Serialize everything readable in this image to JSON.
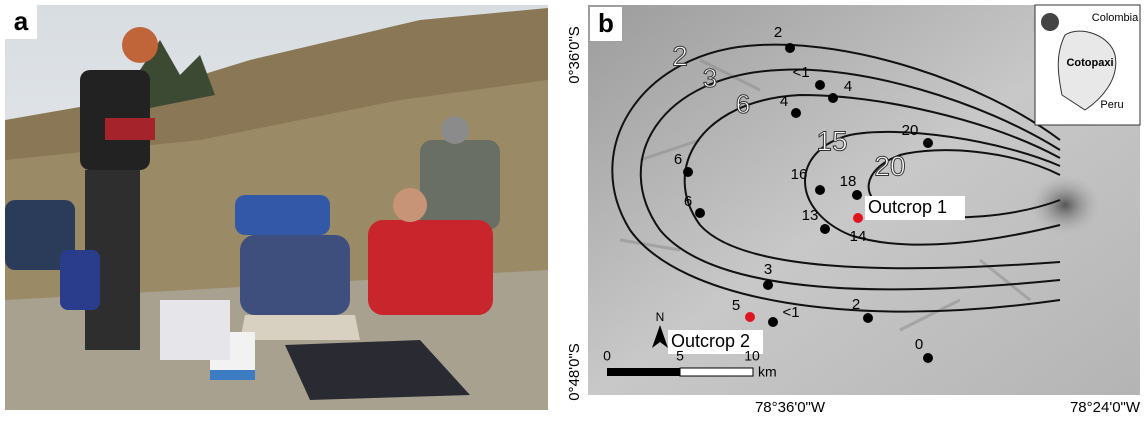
{
  "photo": {
    "label": "a"
  },
  "map": {
    "label": "b",
    "lat_labels": [
      "0°36'0\"S",
      "0°48'0\"S"
    ],
    "lon_labels": [
      "78°36'0\"W",
      "78°24'0\"W"
    ],
    "isopach_labels": [
      "2",
      "3",
      "6",
      "15",
      "20"
    ],
    "sample_labels": [
      "2",
      "<1",
      "4",
      "4",
      "6",
      "6",
      "16",
      "18",
      "20",
      "13",
      "14",
      "3",
      "5",
      "<1",
      "2",
      "0"
    ],
    "outcrops": [
      "Outcrop 1",
      "Outcrop 2"
    ],
    "inset": {
      "labels": [
        "Colombia",
        "Cotopaxi",
        "Peru"
      ]
    },
    "scale": {
      "ticks": [
        "0",
        "5",
        "10"
      ],
      "unit": "km"
    },
    "north": "N"
  }
}
